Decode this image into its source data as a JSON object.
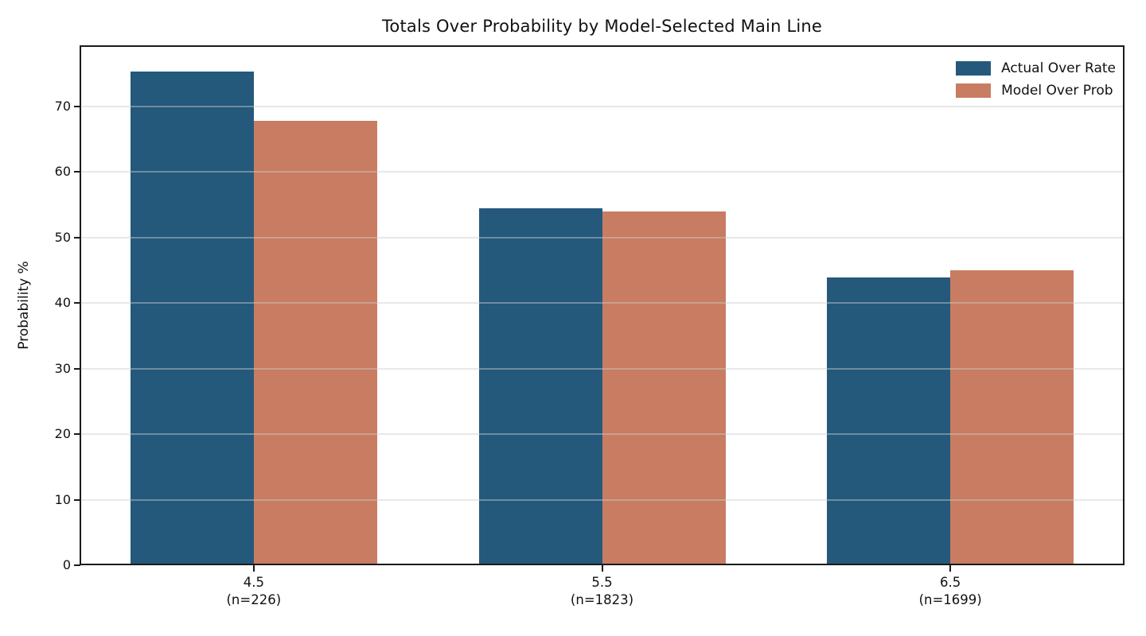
{
  "chart_data": {
    "type": "bar",
    "title": "Totals Over Probability by Model-Selected Main Line",
    "ylabel": "Probability %",
    "xlabel": "",
    "categories": [
      {
        "line": "4.5",
        "n_label": "(n=226)"
      },
      {
        "line": "5.5",
        "n_label": "(n=1823)"
      },
      {
        "line": "6.5",
        "n_label": "(n=1699)"
      }
    ],
    "series": [
      {
        "name": "Actual Over Rate",
        "color": "#24597B",
        "values": [
          75.3,
          54.5,
          43.9
        ]
      },
      {
        "name": "Model Over Prob",
        "color": "#C87C62",
        "values": [
          67.8,
          54.0,
          45.0
        ]
      }
    ],
    "yticks": [
      0,
      10,
      20,
      30,
      40,
      50,
      60,
      70
    ],
    "ylim": [
      0,
      79.3
    ],
    "grid": "horizontal",
    "grid_over_bars": true,
    "legend_position": "upper right",
    "frame_color": "#1a1a1a",
    "background_color": "#ffffff"
  }
}
